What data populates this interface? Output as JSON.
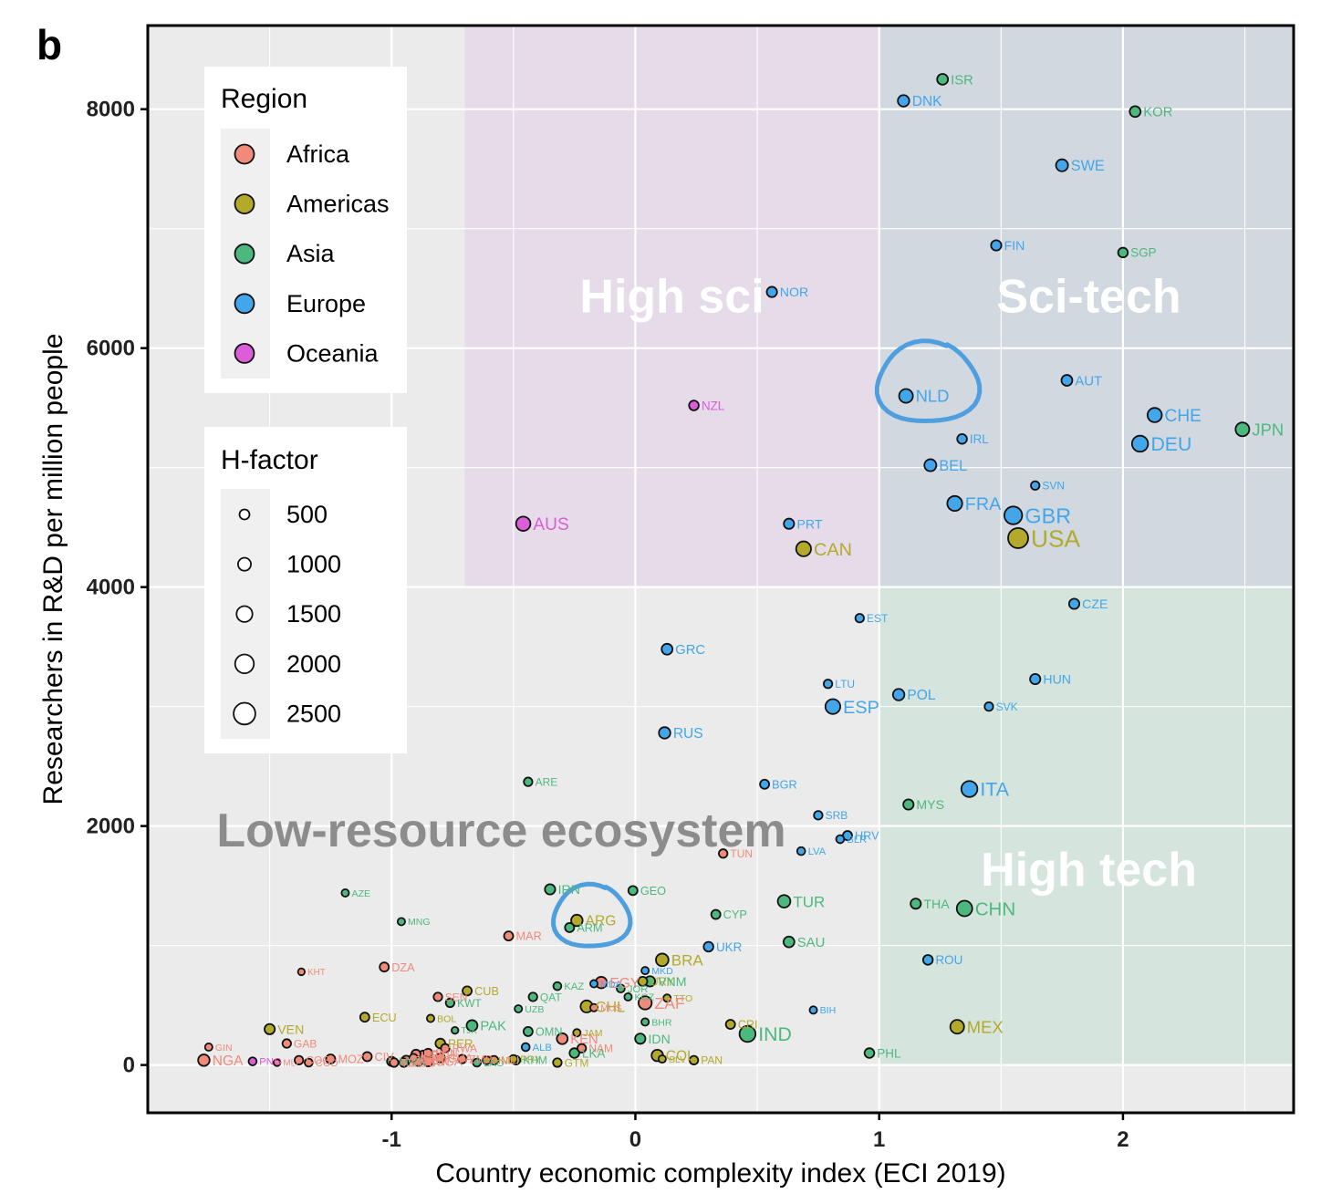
{
  "panel_label": "b",
  "colors": {
    "Africa": "#f08a7a",
    "Americas": "#b3aa2c",
    "Asia": "#4db87e",
    "Europe": "#43a6ea",
    "Oceania": "#db5ed8",
    "annotation": "#4f9fdf"
  },
  "chart_data": {
    "type": "scatter",
    "xlabel": "Country economic complexity index (ECI 2019)",
    "ylabel": "Researchers in R&D per million people",
    "xlim": [
      -2.0,
      2.7
    ],
    "ylim": [
      -400,
      8700
    ],
    "x_ticks": [
      "-1",
      "0",
      "1",
      "2"
    ],
    "y_ticks": [
      "0",
      "2000",
      "4000",
      "6000",
      "8000"
    ],
    "grid": true,
    "regions": [
      {
        "label": "High sci",
        "x": [
          -0.7,
          1.0
        ],
        "y": [
          4000,
          8700
        ],
        "color": "#e6dbe9"
      },
      {
        "label": "Sci-tech",
        "x": [
          1.0,
          2.7
        ],
        "y": [
          4000,
          8700
        ],
        "color": "#d1d8e0"
      },
      {
        "label": "High tech",
        "x": [
          1.0,
          2.7
        ],
        "y": [
          0,
          4000
        ],
        "color": "#d5e4dd"
      },
      {
        "label": "Low-resource ecosystem"
      }
    ],
    "legend_region": {
      "title": "Region",
      "entries": [
        "Africa",
        "Americas",
        "Asia",
        "Europe",
        "Oceania"
      ]
    },
    "legend_hfactor": {
      "title": "H-factor",
      "entries": [
        "500",
        "1000",
        "1500",
        "2000",
        "2500"
      ]
    },
    "points": [
      {
        "c": "ISR",
        "x": 1.26,
        "y": 8250,
        "r": "Asia",
        "h": 1100
      },
      {
        "c": "DNK",
        "x": 1.1,
        "y": 8070,
        "r": "Europe",
        "h": 1200
      },
      {
        "c": "KOR",
        "x": 2.05,
        "y": 7980,
        "r": "Asia",
        "h": 1100
      },
      {
        "c": "SWE",
        "x": 1.75,
        "y": 7530,
        "r": "Europe",
        "h": 1300
      },
      {
        "c": "FIN",
        "x": 1.48,
        "y": 6860,
        "r": "Europe",
        "h": 1000
      },
      {
        "c": "SGP",
        "x": 2.0,
        "y": 6800,
        "r": "Asia",
        "h": 900
      },
      {
        "c": "NOR",
        "x": 0.56,
        "y": 6470,
        "r": "Europe",
        "h": 1000
      },
      {
        "c": "AUT",
        "x": 1.77,
        "y": 5730,
        "r": "Europe",
        "h": 1100
      },
      {
        "c": "NLD",
        "x": 1.11,
        "y": 5600,
        "r": "Europe",
        "h": 1600
      },
      {
        "c": "NZL",
        "x": 0.24,
        "y": 5520,
        "r": "Oceania",
        "h": 900
      },
      {
        "c": "CHE",
        "x": 2.13,
        "y": 5440,
        "r": "Europe",
        "h": 1700
      },
      {
        "c": "JPN",
        "x": 2.49,
        "y": 5320,
        "r": "Asia",
        "h": 1600
      },
      {
        "c": "IRL",
        "x": 1.34,
        "y": 5240,
        "r": "Europe",
        "h": 900
      },
      {
        "c": "DEU",
        "x": 2.07,
        "y": 5200,
        "r": "Europe",
        "h": 2000
      },
      {
        "c": "BEL",
        "x": 1.21,
        "y": 5020,
        "r": "Europe",
        "h": 1300
      },
      {
        "c": "SVN",
        "x": 1.64,
        "y": 4850,
        "r": "Europe",
        "h": 700
      },
      {
        "c": "FRA",
        "x": 1.31,
        "y": 4700,
        "r": "Europe",
        "h": 1800
      },
      {
        "c": "GBR",
        "x": 1.55,
        "y": 4600,
        "r": "Europe",
        "h": 2300
      },
      {
        "c": "AUS",
        "x": -0.46,
        "y": 4530,
        "r": "Oceania",
        "h": 1700
      },
      {
        "c": "PRT",
        "x": 0.63,
        "y": 4530,
        "r": "Europe",
        "h": 1000
      },
      {
        "c": "USA",
        "x": 1.57,
        "y": 4410,
        "r": "Americas",
        "h": 2700
      },
      {
        "c": "CAN",
        "x": 0.69,
        "y": 4320,
        "r": "Americas",
        "h": 1800
      },
      {
        "c": "CZE",
        "x": 1.8,
        "y": 3860,
        "r": "Europe",
        "h": 1000
      },
      {
        "c": "EST",
        "x": 0.92,
        "y": 3740,
        "r": "Europe",
        "h": 700
      },
      {
        "c": "GRC",
        "x": 0.13,
        "y": 3480,
        "r": "Europe",
        "h": 1100
      },
      {
        "c": "HUN",
        "x": 1.64,
        "y": 3230,
        "r": "Europe",
        "h": 1000
      },
      {
        "c": "LTU",
        "x": 0.79,
        "y": 3190,
        "r": "Europe",
        "h": 700
      },
      {
        "c": "POL",
        "x": 1.08,
        "y": 3100,
        "r": "Europe",
        "h": 1200
      },
      {
        "c": "ESP",
        "x": 0.81,
        "y": 3000,
        "r": "Europe",
        "h": 1800
      },
      {
        "c": "SVK",
        "x": 1.45,
        "y": 3000,
        "r": "Europe",
        "h": 700
      },
      {
        "c": "RUS",
        "x": 0.12,
        "y": 2780,
        "r": "Europe",
        "h": 1200
      },
      {
        "c": "ARE",
        "x": -0.44,
        "y": 2370,
        "r": "Asia",
        "h": 700
      },
      {
        "c": "BGR",
        "x": 0.53,
        "y": 2350,
        "r": "Europe",
        "h": 800
      },
      {
        "c": "ITA",
        "x": 1.37,
        "y": 2310,
        "r": "Europe",
        "h": 2000
      },
      {
        "c": "MYS",
        "x": 1.12,
        "y": 2180,
        "r": "Asia",
        "h": 1000
      },
      {
        "c": "SRB",
        "x": 0.75,
        "y": 2090,
        "r": "Europe",
        "h": 700
      },
      {
        "c": "HRV",
        "x": 0.87,
        "y": 1920,
        "r": "Europe",
        "h": 800
      },
      {
        "c": "BLR",
        "x": 0.84,
        "y": 1890,
        "r": "Europe",
        "h": 600
      },
      {
        "c": "LVA",
        "x": 0.68,
        "y": 1790,
        "r": "Europe",
        "h": 600
      },
      {
        "c": "TUN",
        "x": 0.36,
        "y": 1770,
        "r": "Africa",
        "h": 700
      },
      {
        "c": "AZE",
        "x": -1.19,
        "y": 1440,
        "r": "Asia",
        "h": 500
      },
      {
        "c": "IRN",
        "x": -0.35,
        "y": 1470,
        "r": "Asia",
        "h": 1000
      },
      {
        "c": "GEO",
        "x": -0.01,
        "y": 1460,
        "r": "Asia",
        "h": 800
      },
      {
        "c": "TUR",
        "x": 0.61,
        "y": 1370,
        "r": "Asia",
        "h": 1400
      },
      {
        "c": "THA",
        "x": 1.15,
        "y": 1350,
        "r": "Asia",
        "h": 1000
      },
      {
        "c": "CHN",
        "x": 1.35,
        "y": 1310,
        "r": "Asia",
        "h": 1900
      },
      {
        "c": "CYP",
        "x": 0.33,
        "y": 1260,
        "r": "Asia",
        "h": 800
      },
      {
        "c": "ARG",
        "x": -0.24,
        "y": 1210,
        "r": "Americas",
        "h": 1200
      },
      {
        "c": "MNG",
        "x": -0.96,
        "y": 1200,
        "r": "Asia",
        "h": 500
      },
      {
        "c": "ARM",
        "x": -0.27,
        "y": 1150,
        "r": "Asia",
        "h": 800
      },
      {
        "c": "MAR",
        "x": -0.52,
        "y": 1080,
        "r": "Africa",
        "h": 800
      },
      {
        "c": "SAU",
        "x": 0.63,
        "y": 1030,
        "r": "Asia",
        "h": 1100
      },
      {
        "c": "UKR",
        "x": 0.3,
        "y": 990,
        "r": "Europe",
        "h": 900
      },
      {
        "c": "BRA",
        "x": 0.11,
        "y": 880,
        "r": "Americas",
        "h": 1400
      },
      {
        "c": "ROU",
        "x": 1.2,
        "y": 880,
        "r": "Europe",
        "h": 900
      },
      {
        "c": "DZA",
        "x": -1.03,
        "y": 820,
        "r": "Africa",
        "h": 800
      },
      {
        "c": "MKD",
        "x": 0.04,
        "y": 790,
        "r": "Europe",
        "h": 500
      },
      {
        "c": "KHT",
        "x": -1.37,
        "y": 780,
        "r": "Africa",
        "h": 400
      },
      {
        "c": "EGY",
        "x": -0.14,
        "y": 690,
        "r": "Africa",
        "h": 1200
      },
      {
        "c": "MDA",
        "x": -0.17,
        "y": 680,
        "r": "Europe",
        "h": 500
      },
      {
        "c": "URY",
        "x": 0.03,
        "y": 700,
        "r": "Americas",
        "h": 800
      },
      {
        "c": "VNM",
        "x": 0.06,
        "y": 700,
        "r": "Asia",
        "h": 1000
      },
      {
        "c": "JOR",
        "x": -0.06,
        "y": 640,
        "r": "Asia",
        "h": 600
      },
      {
        "c": "KAZ",
        "x": -0.32,
        "y": 660,
        "r": "Asia",
        "h": 600
      },
      {
        "c": "CUB",
        "x": -0.69,
        "y": 620,
        "r": "Americas",
        "h": 800
      },
      {
        "c": "QAT",
        "x": -0.42,
        "y": 570,
        "r": "Asia",
        "h": 700
      },
      {
        "c": "SEN",
        "x": -0.81,
        "y": 570,
        "r": "Africa",
        "h": 700
      },
      {
        "c": "KWT",
        "x": -0.76,
        "y": 520,
        "r": "Asia",
        "h": 700
      },
      {
        "c": "TTO",
        "x": 0.13,
        "y": 560,
        "r": "Americas",
        "h": 500
      },
      {
        "c": "KGZ",
        "x": -0.03,
        "y": 570,
        "r": "Asia",
        "h": 500
      },
      {
        "c": "UZB",
        "x": -0.48,
        "y": 470,
        "r": "Asia",
        "h": 500
      },
      {
        "c": "ZAF",
        "x": 0.04,
        "y": 520,
        "r": "Africa",
        "h": 1500
      },
      {
        "c": "CHL",
        "x": -0.2,
        "y": 490,
        "r": "Americas",
        "h": 1300
      },
      {
        "c": "MUS",
        "x": -0.17,
        "y": 480,
        "r": "Africa",
        "h": 500
      },
      {
        "c": "BIH",
        "x": 0.73,
        "y": 460,
        "r": "Europe",
        "h": 500
      },
      {
        "c": "ECU",
        "x": -1.11,
        "y": 400,
        "r": "Americas",
        "h": 800
      },
      {
        "c": "BOL",
        "x": -0.84,
        "y": 390,
        "r": "Americas",
        "h": 500
      },
      {
        "c": "BHR",
        "x": 0.04,
        "y": 360,
        "r": "Asia",
        "h": 500
      },
      {
        "c": "CRI",
        "x": 0.39,
        "y": 340,
        "r": "Americas",
        "h": 800
      },
      {
        "c": "PAK",
        "x": -0.67,
        "y": 330,
        "r": "Asia",
        "h": 1100
      },
      {
        "c": "OMN",
        "x": -0.44,
        "y": 280,
        "r": "Asia",
        "h": 800
      },
      {
        "c": "MEX",
        "x": 1.32,
        "y": 320,
        "r": "Americas",
        "h": 1600
      },
      {
        "c": "TJK",
        "x": -0.74,
        "y": 290,
        "r": "Asia",
        "h": 400
      },
      {
        "c": "VEN",
        "x": -1.5,
        "y": 300,
        "r": "Americas",
        "h": 1000
      },
      {
        "c": "KEN",
        "x": -0.3,
        "y": 220,
        "r": "Africa",
        "h": 1100
      },
      {
        "c": "JAM",
        "x": -0.24,
        "y": 270,
        "r": "Americas",
        "h": 500
      },
      {
        "c": "IND",
        "x": 0.46,
        "y": 260,
        "r": "Asia",
        "h": 2000
      },
      {
        "c": "IDN",
        "x": 0.02,
        "y": 220,
        "r": "Asia",
        "h": 1000
      },
      {
        "c": "PER",
        "x": -0.8,
        "y": 180,
        "r": "Americas",
        "h": 900
      },
      {
        "c": "GAB",
        "x": -1.43,
        "y": 180,
        "r": "Africa",
        "h": 700
      },
      {
        "c": "NAM",
        "x": -0.22,
        "y": 140,
        "r": "Africa",
        "h": 700
      },
      {
        "c": "ALB",
        "x": -0.45,
        "y": 150,
        "r": "Europe",
        "h": 600
      },
      {
        "c": "LKA",
        "x": -0.25,
        "y": 100,
        "r": "Asia",
        "h": 900
      },
      {
        "c": "PHL",
        "x": 0.96,
        "y": 100,
        "r": "Asia",
        "h": 900
      },
      {
        "c": "COL",
        "x": 0.09,
        "y": 80,
        "r": "Americas",
        "h": 1200
      },
      {
        "c": "PAN",
        "x": 0.24,
        "y": 40,
        "r": "Americas",
        "h": 700
      },
      {
        "c": "GIN",
        "x": -1.75,
        "y": 150,
        "r": "Africa",
        "h": 500
      },
      {
        "c": "NGA",
        "x": -1.77,
        "y": 40,
        "r": "Africa",
        "h": 1200
      },
      {
        "c": "PNG",
        "x": -1.57,
        "y": 30,
        "r": "Oceania",
        "h": 600
      },
      {
        "c": "MLI",
        "x": -1.47,
        "y": 20,
        "r": "Africa",
        "h": 400
      },
      {
        "c": "COG",
        "x": -1.38,
        "y": 40,
        "r": "Africa",
        "h": 700
      },
      {
        "c": "COD",
        "x": -1.34,
        "y": 20,
        "r": "Africa",
        "h": 600
      },
      {
        "c": "MOZ",
        "x": -1.25,
        "y": 50,
        "r": "Africa",
        "h": 800
      },
      {
        "c": "CIV",
        "x": -1.1,
        "y": 70,
        "r": "Africa",
        "h": 800
      },
      {
        "c": "MMR",
        "x": -1.0,
        "y": 30,
        "r": "Asia",
        "h": 800
      },
      {
        "c": "TZA",
        "x": -0.99,
        "y": 20,
        "r": "Africa",
        "h": 700
      },
      {
        "c": "ZWE",
        "x": -0.94,
        "y": 40,
        "r": "Africa",
        "h": 800
      },
      {
        "c": "MDG",
        "x": -0.95,
        "y": 20,
        "r": "Africa",
        "h": 700
      },
      {
        "c": "TGO",
        "x": -0.91,
        "y": 60,
        "r": "Africa",
        "h": 600
      },
      {
        "c": "BFA",
        "x": -0.9,
        "y": 90,
        "r": "Africa",
        "h": 800
      },
      {
        "c": "MWI",
        "x": -0.89,
        "y": 30,
        "r": "Africa",
        "h": 800
      },
      {
        "c": "ETH",
        "x": -0.87,
        "y": 80,
        "r": "Africa",
        "h": 900
      },
      {
        "c": "BEN",
        "x": -0.85,
        "y": 100,
        "r": "Africa",
        "h": 700
      },
      {
        "c": "UGA",
        "x": -0.85,
        "y": 30,
        "r": "Africa",
        "h": 900
      },
      {
        "c": "GHA",
        "x": -0.8,
        "y": 60,
        "r": "Africa",
        "h": 800
      },
      {
        "c": "RWA",
        "x": -0.78,
        "y": 140,
        "r": "Africa",
        "h": 700
      },
      {
        "c": "ZMB",
        "x": -0.71,
        "y": 50,
        "r": "Africa",
        "h": 700
      },
      {
        "c": "LAO",
        "x": -0.65,
        "y": 20,
        "r": "Asia",
        "h": 600
      },
      {
        "c": "HND",
        "x": -0.61,
        "y": 40,
        "r": "Americas",
        "h": 600
      },
      {
        "c": "MLI",
        "x": -0.58,
        "y": 40,
        "r": "Africa",
        "h": 700
      },
      {
        "c": "PRY",
        "x": -0.5,
        "y": 50,
        "r": "Americas",
        "h": 600
      },
      {
        "c": "KHM",
        "x": -0.49,
        "y": 40,
        "r": "Asia",
        "h": 700
      },
      {
        "c": "GTM",
        "x": -0.32,
        "y": 20,
        "r": "Americas",
        "h": 700
      },
      {
        "c": "SLV",
        "x": 0.11,
        "y": 50,
        "r": "Americas",
        "h": 500
      }
    ]
  }
}
